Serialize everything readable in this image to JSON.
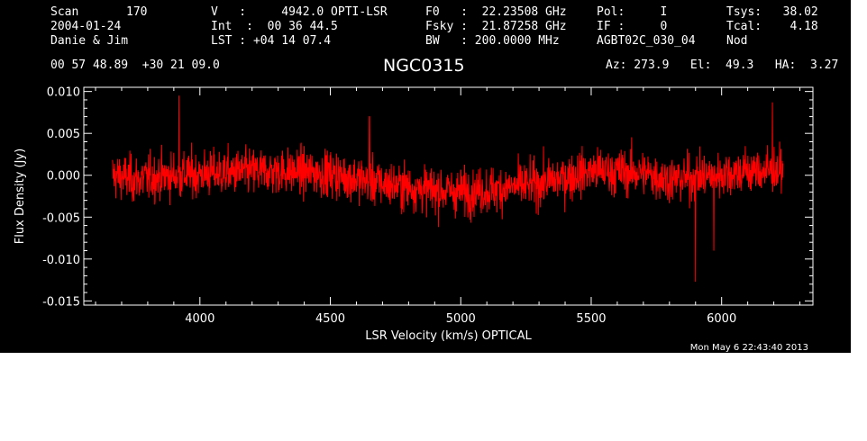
{
  "header": {
    "scan_label": "Scan",
    "scan_value": "170",
    "date": "2004-01-24",
    "observers": "Danie & Jim",
    "coords": "00 57 48.89  +30 21 09.0",
    "velocity": "V   :     4942.0 OPTI-LSR",
    "integration": "Int  :  00 36 44.5",
    "lst": "LST : +04 14 07.4",
    "f0": "F0   :  22.23508 GHz",
    "fsky": "Fsky :  21.87258 GHz",
    "bw": "BW   : 200.0000 MHz",
    "pol": "Pol:     I",
    "if": "IF :     0",
    "project": "AGBT02C_030_04",
    "tsys": "Tsys:   38.02",
    "tcal": "Tcal:    4.18",
    "mode": "Nod",
    "source": "NGC0315",
    "pointing": "Az: 273.9   El:  49.3   HA:  3.27",
    "timestamp": "Mon May  6 22:43:40 2013"
  },
  "colors": {
    "background": "#000000",
    "axes": "#ffffff",
    "trace": "#ff0000"
  },
  "chart_data": {
    "type": "line",
    "title": "NGC0315",
    "xlabel": "LSR Velocity (km/s) OPTICAL",
    "ylabel": "Flux Density (Jy)",
    "xlim": [
      3555,
      6350
    ],
    "ylim": [
      -0.0155,
      0.0105
    ],
    "xticks": [
      4000,
      4500,
      5000,
      5500,
      6000
    ],
    "xtick_labels": [
      "4000",
      "4500",
      "5000",
      "5500",
      "6000"
    ],
    "yticks": [
      -0.015,
      -0.01,
      -0.005,
      0.0,
      0.005,
      0.01
    ],
    "ytick_labels": [
      "-0.015",
      "-0.010",
      "-0.005",
      "0.000",
      "0.005",
      "0.010"
    ],
    "grid": false,
    "series": [
      {
        "color": "#ff0000",
        "x_range": [
          3665,
          6235
        ],
        "noise_rms": 0.0025,
        "baseline": {
          "x": [
            3665,
            3750,
            3900,
            4100,
            4300,
            4500,
            4700,
            4900,
            5000,
            5100,
            5300,
            5500,
            5700,
            5800,
            5900,
            6000,
            6100,
            6235
          ],
          "y": [
            0.0,
            -0.0005,
            0.0,
            0.0003,
            0.0005,
            0.0002,
            -0.001,
            -0.0018,
            -0.002,
            -0.0018,
            -0.001,
            0.0005,
            0.0003,
            -0.0005,
            -0.0003,
            0.0002,
            0.0005,
            0.0005
          ]
        },
        "features": [
          {
            "x": 3920,
            "y": 0.0095
          },
          {
            "x": 5900,
            "y": -0.0127
          },
          {
            "x": 6195,
            "y": 0.0087
          },
          {
            "x": 5970,
            "y": -0.009
          },
          {
            "x": 4650,
            "y": 0.007
          }
        ]
      }
    ]
  }
}
